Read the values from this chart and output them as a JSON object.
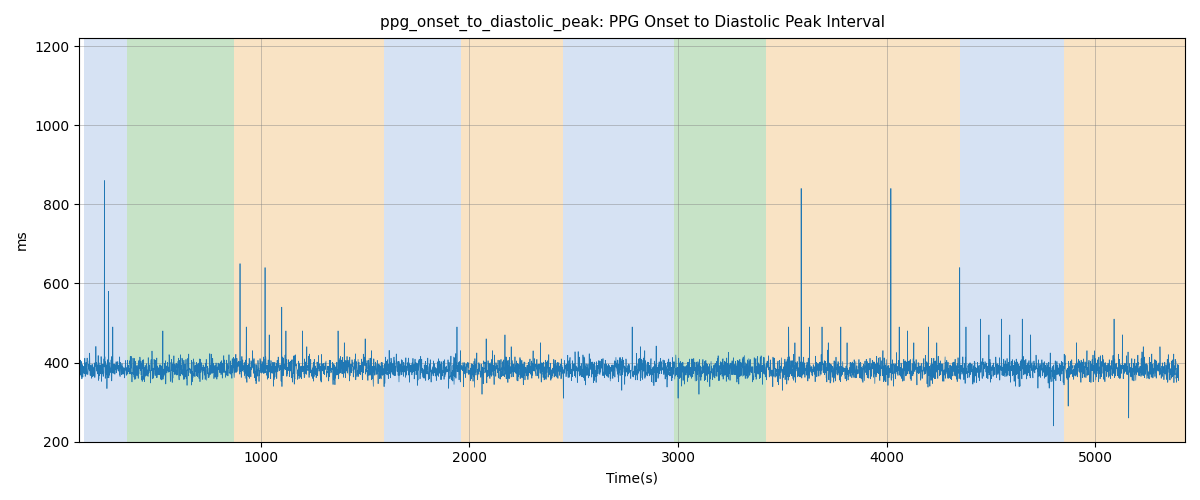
{
  "title": "ppg_onset_to_diastolic_peak: PPG Onset to Diastolic Peak Interval",
  "xlabel": "Time(s)",
  "ylabel": "ms",
  "ylim": [
    200,
    1220
  ],
  "xlim": [
    130,
    5430
  ],
  "line_color": "#1f77b4",
  "line_width": 0.5,
  "background_regions": [
    {
      "xmin": 150,
      "xmax": 360,
      "color": "#aec6e8",
      "alpha": 0.5
    },
    {
      "xmin": 360,
      "xmax": 870,
      "color": "#90c890",
      "alpha": 0.5
    },
    {
      "xmin": 870,
      "xmax": 1590,
      "color": "#f5c98a",
      "alpha": 0.5
    },
    {
      "xmin": 1590,
      "xmax": 1960,
      "color": "#aec6e8",
      "alpha": 0.5
    },
    {
      "xmin": 1960,
      "xmax": 2450,
      "color": "#f5c98a",
      "alpha": 0.5
    },
    {
      "xmin": 2450,
      "xmax": 2720,
      "color": "#aec6e8",
      "alpha": 0.5
    },
    {
      "xmin": 2720,
      "xmax": 2980,
      "color": "#aec6e8",
      "alpha": 0.5
    },
    {
      "xmin": 2980,
      "xmax": 3420,
      "color": "#90c890",
      "alpha": 0.5
    },
    {
      "xmin": 3420,
      "xmax": 3700,
      "color": "#f5c98a",
      "alpha": 0.5
    },
    {
      "xmin": 3700,
      "xmax": 4350,
      "color": "#f5c98a",
      "alpha": 0.5
    },
    {
      "xmin": 4350,
      "xmax": 4850,
      "color": "#aec6e8",
      "alpha": 0.5
    },
    {
      "xmin": 4850,
      "xmax": 5430,
      "color": "#f5c98a",
      "alpha": 0.5
    }
  ],
  "seed": 42,
  "n_points": 5400,
  "base_value": 383,
  "noise_std": 15,
  "yticks": [
    200,
    400,
    600,
    800,
    1000,
    1200
  ],
  "xticks": [
    1000,
    2000,
    3000,
    4000,
    5000
  ]
}
